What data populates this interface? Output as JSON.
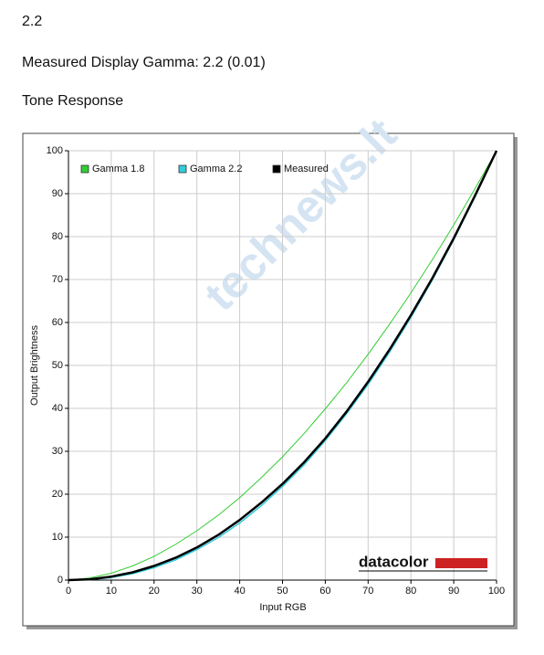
{
  "heading": "2.2",
  "measured_line": "Measured Display Gamma: 2.2 (0.01)",
  "section_title": "Tone Response",
  "logo": "datacolor",
  "watermark": "technews.lt",
  "chart_data": {
    "type": "line",
    "x_label": "Input RGB",
    "y_label": "Output Brightness",
    "x": [
      0,
      5,
      10,
      15,
      20,
      25,
      30,
      35,
      40,
      45,
      50,
      55,
      60,
      65,
      70,
      75,
      80,
      85,
      90,
      95,
      100
    ],
    "series": [
      {
        "name": "Gamma 1.8",
        "color": "#33cc33",
        "width": 1,
        "values": [
          0,
          0.5,
          1.6,
          3.3,
          5.5,
          8.3,
          11.5,
          15.1,
          19.2,
          23.8,
          28.7,
          34.1,
          39.9,
          46.0,
          52.6,
          59.6,
          66.9,
          74.6,
          82.7,
          91.2,
          100
        ]
      },
      {
        "name": "Gamma 2.2",
        "color": "#33ccdd",
        "width": 1.5,
        "values": [
          0,
          0.1,
          0.6,
          1.5,
          2.9,
          4.7,
          7.1,
          9.9,
          13.3,
          17.3,
          21.8,
          26.8,
          32.5,
          38.8,
          45.6,
          53.1,
          61.2,
          69.9,
          79.3,
          89.3,
          100
        ]
      },
      {
        "name": "Measured",
        "color": "#000000",
        "width": 2.5,
        "values": [
          0,
          0.2,
          0.8,
          1.8,
          3.3,
          5.2,
          7.6,
          10.5,
          14.0,
          18.0,
          22.4,
          27.4,
          33.0,
          39.3,
          46.2,
          53.7,
          61.7,
          70.3,
          79.6,
          89.6,
          100
        ]
      }
    ],
    "xlim": [
      0,
      100
    ],
    "xticks": [
      0,
      10,
      20,
      30,
      40,
      50,
      60,
      70,
      80,
      90,
      100
    ],
    "ylim": [
      0,
      100
    ],
    "yticks": [
      0,
      10,
      20,
      30,
      40,
      50,
      60,
      70,
      80,
      90,
      100
    ],
    "grid": true,
    "legend": "upper left"
  }
}
